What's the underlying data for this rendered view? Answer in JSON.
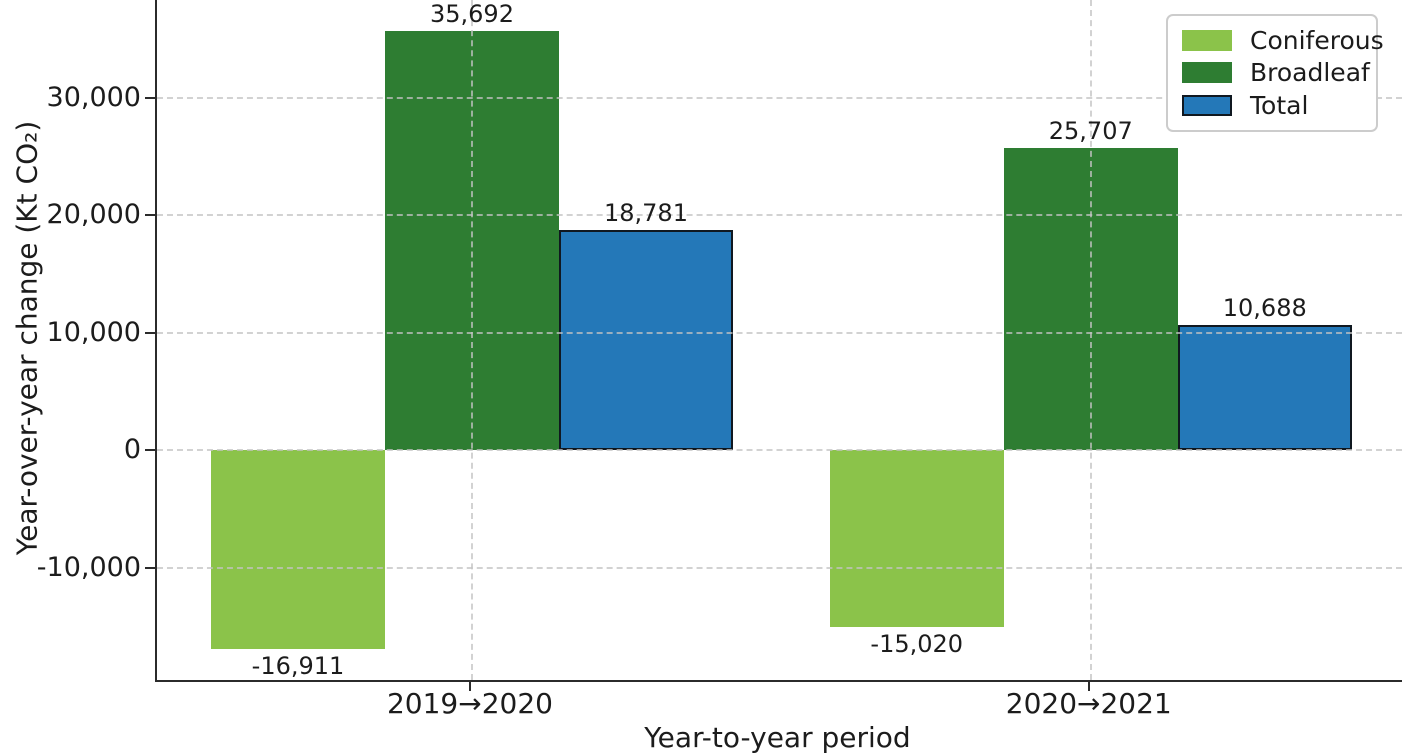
{
  "figure": {
    "background_color": "#ffffff",
    "text_color": "#1c1c1c",
    "spine_color": "#2b2b2b",
    "gridline_color": "#c3c3c3"
  },
  "chart_data": {
    "type": "bar",
    "title": "",
    "xlabel": "Year-to-year period",
    "ylabel": "Year-over-year change (Kt CO₂)",
    "categories": [
      "2019→2020",
      "2020→2021"
    ],
    "series": [
      {
        "name": "Coniferous",
        "color": "#8bc34a",
        "edge_color": null,
        "values": [
          -16911,
          -15020
        ],
        "labels": [
          "-16,911",
          "-15,020"
        ]
      },
      {
        "name": "Broadleaf",
        "color": "#2e7d32",
        "edge_color": null,
        "values": [
          35692,
          25707
        ],
        "labels": [
          "35,692",
          "25,707"
        ]
      },
      {
        "name": "Total",
        "color": "#2478b8",
        "edge_color": "#101820",
        "values": [
          18781,
          10688
        ],
        "labels": [
          "18,781",
          "10,688"
        ]
      }
    ],
    "ylim": [
      -19541,
      38322
    ],
    "yticks": [
      {
        "value": 30000,
        "label": "30,000"
      },
      {
        "value": 20000,
        "label": "20,000"
      },
      {
        "value": 10000,
        "label": "10,000"
      },
      {
        "value": 0,
        "label": "0"
      },
      {
        "value": -10000,
        "label": "-10,000"
      }
    ],
    "grid": {
      "horizontal": true,
      "vertical": true,
      "style": "dashed",
      "above_bars": true
    },
    "legend": {
      "position": "upper right",
      "entries": [
        "Coniferous",
        "Broadleaf",
        "Total"
      ]
    }
  }
}
